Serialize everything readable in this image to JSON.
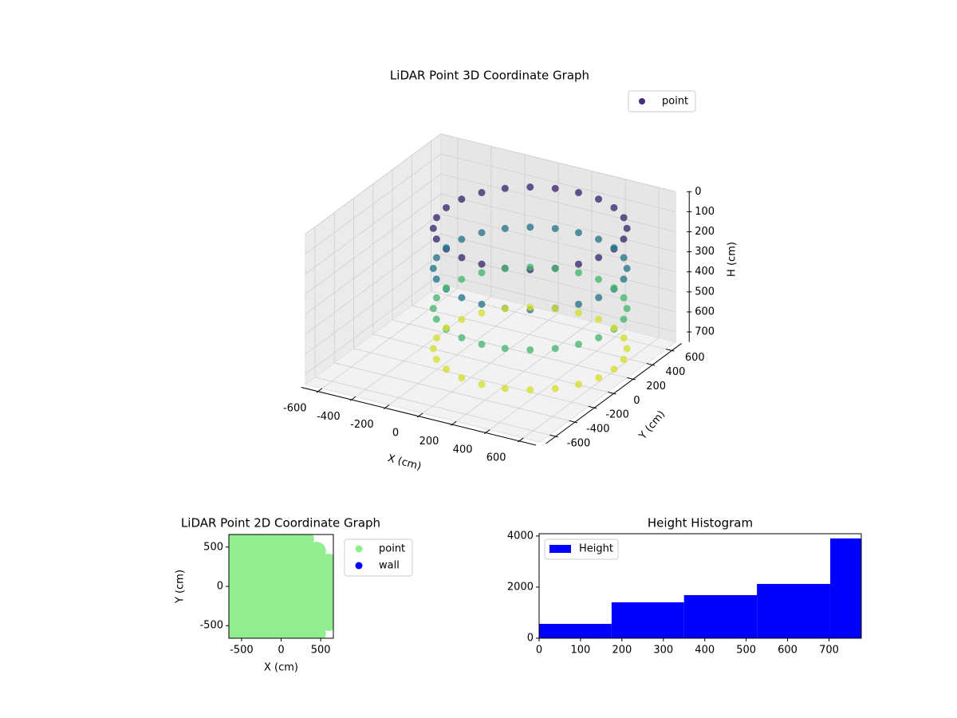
{
  "chart_data": [
    {
      "type": "scatter3d",
      "title": "LiDAR Point 3D Coordinate Graph",
      "xlabel": "X (cm)",
      "ylabel": "Y (cm)",
      "zlabel": "H (cm)",
      "xlim": [
        -700,
        700
      ],
      "ylim": [
        -700,
        700
      ],
      "zlim": [
        0,
        750
      ],
      "z_inverted": true,
      "xticks": [
        -600,
        -400,
        -200,
        0,
        200,
        400,
        600
      ],
      "yticks": [
        -600,
        -400,
        -200,
        0,
        200,
        400,
        600
      ],
      "zticks": [
        0,
        100,
        200,
        300,
        400,
        500,
        600,
        700
      ],
      "colormap": "viridis",
      "legend": "upper right",
      "grid": true,
      "series": [
        {
          "name": "point",
          "color": "#472d7b",
          "x": [
            650,
            633,
            583,
            504,
            400,
            279,
            150,
            21,
            -100,
            -204,
            -283,
            -333,
            -350,
            -333,
            -283,
            -204,
            -100,
            21,
            150,
            279,
            400,
            504,
            583,
            633,
            650,
            633,
            583,
            504,
            400,
            279,
            150,
            21,
            -100,
            -204,
            -283,
            -333,
            -350,
            -333,
            -283,
            -204,
            -100,
            21,
            150,
            279,
            400,
            504,
            583,
            633,
            650,
            633,
            583,
            504,
            400,
            279,
            150,
            21,
            -100,
            -204,
            -283,
            -333,
            -350,
            -333,
            -283,
            -204,
            -100,
            21,
            150,
            279,
            400,
            504,
            583,
            633,
            650,
            633,
            583,
            504,
            400,
            279,
            150,
            21,
            -100,
            -204,
            -283,
            -333,
            -350,
            -333,
            -283,
            -204,
            -100,
            21,
            150,
            279,
            400,
            504,
            583,
            633
          ],
          "y": [
            150,
            279,
            400,
            504,
            583,
            633,
            650,
            633,
            583,
            504,
            400,
            279,
            150,
            21,
            -100,
            -204,
            -283,
            -333,
            -350,
            -333,
            -283,
            -204,
            -100,
            21,
            150,
            279,
            400,
            504,
            583,
            633,
            650,
            633,
            583,
            504,
            400,
            279,
            150,
            21,
            -100,
            -204,
            -283,
            -333,
            -350,
            -333,
            -283,
            -204,
            -100,
            21,
            150,
            279,
            400,
            504,
            583,
            633,
            650,
            633,
            583,
            504,
            400,
            279,
            150,
            21,
            -100,
            -204,
            -283,
            -333,
            -350,
            -333,
            -283,
            -204,
            -100,
            21,
            150,
            279,
            400,
            504,
            583,
            633,
            650,
            633,
            583,
            504,
            400,
            279,
            150,
            21,
            -100,
            -204,
            -283,
            -333,
            -350,
            -333,
            -283,
            -204,
            -100,
            21
          ],
          "z": [
            100,
            100,
            100,
            100,
            100,
            100,
            100,
            100,
            100,
            100,
            100,
            100,
            100,
            100,
            100,
            100,
            100,
            100,
            100,
            100,
            100,
            100,
            100,
            100,
            300,
            300,
            300,
            300,
            300,
            300,
            300,
            300,
            300,
            300,
            300,
            300,
            300,
            300,
            300,
            300,
            300,
            300,
            300,
            300,
            300,
            300,
            300,
            300,
            500,
            500,
            500,
            500,
            500,
            500,
            500,
            500,
            500,
            500,
            500,
            500,
            500,
            500,
            500,
            500,
            500,
            500,
            500,
            500,
            500,
            500,
            500,
            500,
            700,
            700,
            700,
            700,
            700,
            700,
            700,
            700,
            700,
            700,
            700,
            700,
            700,
            700,
            700,
            700,
            700,
            700,
            700,
            700,
            700,
            700,
            700,
            700
          ]
        }
      ]
    },
    {
      "type": "scatter",
      "title": "LiDAR Point 2D Coordinate Graph",
      "xlabel": "X (cm)",
      "ylabel": "Y (cm)",
      "xlim": [
        -660,
        660
      ],
      "ylim": [
        -660,
        660
      ],
      "xticks": [
        -500,
        0,
        500
      ],
      "yticks": [
        -500,
        0,
        500
      ],
      "legend": "outside right",
      "series": [
        {
          "name": "point",
          "color": "#90ee90",
          "x": [
            -600,
            -450,
            -300,
            -150,
            0,
            150,
            300,
            -600,
            -450,
            -300,
            -150,
            0,
            150,
            300,
            450,
            -600,
            -450,
            -300,
            -150,
            0,
            150,
            300,
            450,
            600,
            -600,
            -450,
            -300,
            -150,
            0,
            150,
            300,
            450,
            600,
            -600,
            -450,
            -300,
            -150,
            0,
            150,
            300,
            450,
            600,
            -600,
            -450,
            -300,
            -150,
            0,
            150,
            300,
            450,
            600,
            -600,
            -450,
            -300,
            -150,
            0,
            150,
            300,
            450,
            600,
            -600,
            -450,
            -300,
            -150,
            0,
            150,
            300,
            450,
            600,
            -600,
            -450,
            -300,
            -150,
            0,
            150,
            300,
            450
          ],
          "y": [
            600,
            600,
            600,
            600,
            600,
            600,
            600,
            450,
            450,
            450,
            450,
            450,
            450,
            450,
            450,
            300,
            300,
            300,
            300,
            300,
            300,
            300,
            300,
            300,
            150,
            150,
            150,
            150,
            150,
            150,
            150,
            150,
            150,
            0,
            0,
            0,
            0,
            0,
            0,
            0,
            0,
            0,
            -150,
            -150,
            -150,
            -150,
            -150,
            -150,
            -150,
            -150,
            -150,
            -300,
            -300,
            -300,
            -300,
            -300,
            -300,
            -300,
            -300,
            -300,
            -450,
            -450,
            -450,
            -450,
            -450,
            -450,
            -450,
            -450,
            -450,
            -600,
            -600,
            -600,
            -600,
            -600,
            -600,
            -600,
            -600
          ]
        },
        {
          "name": "wall",
          "color": "#0000ff",
          "x": [],
          "y": []
        }
      ]
    },
    {
      "type": "hist",
      "title": "Height Histogram",
      "bins": [
        0,
        175,
        350,
        526,
        703,
        778
      ],
      "counts": [
        562,
        1406,
        1687,
        2125,
        3906
      ],
      "series_name": "Height",
      "color": "#0000ff",
      "xlim": [
        0,
        778
      ],
      "ylim": [
        0,
        4090
      ],
      "xticks": [
        0,
        100,
        200,
        300,
        400,
        500,
        600,
        700
      ],
      "yticks": [
        0,
        2000,
        4000
      ],
      "legend": "upper left"
    }
  ]
}
